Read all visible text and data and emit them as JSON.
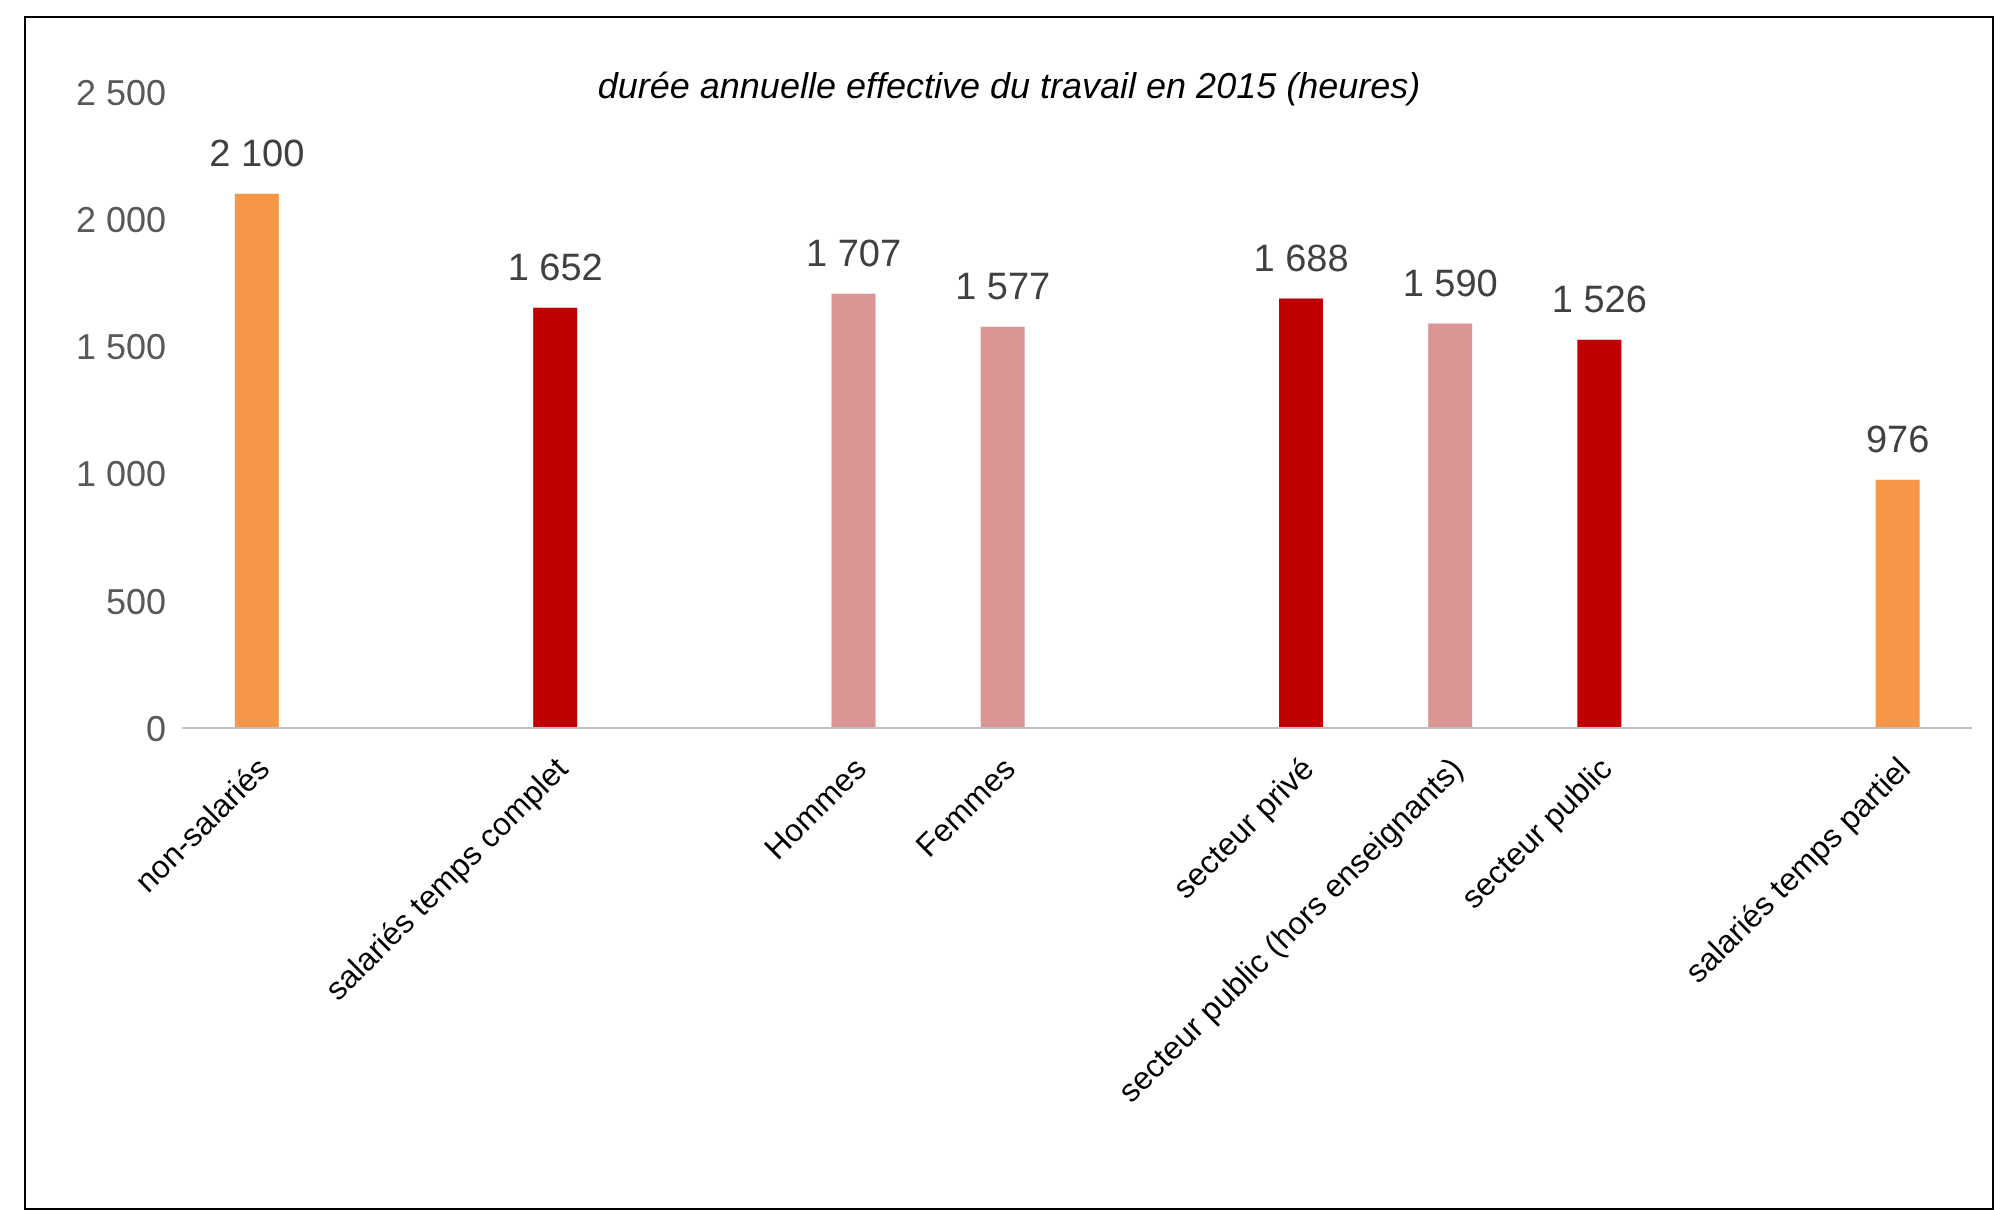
{
  "chart_data": {
    "type": "bar",
    "title": "durée annuelle effective du travail en 2015 (heures)",
    "categories": [
      "non-salariés",
      null,
      "salariés temps complet",
      null,
      "Hommes",
      "Femmes",
      null,
      "secteur privé",
      "secteur public (hors enseignants)",
      "secteur public",
      null,
      "salariés temps partiel"
    ],
    "values": [
      2100,
      null,
      1652,
      null,
      1707,
      1577,
      null,
      1688,
      1590,
      1526,
      null,
      976
    ],
    "colors": [
      "#f79646",
      null,
      "#c00000",
      null,
      "#d99694",
      "#d99694",
      null,
      "#c00000",
      "#d99694",
      "#c00000",
      null,
      "#f79646"
    ],
    "value_labels": [
      "2 100",
      null,
      "1 652",
      null,
      "1 707",
      "1 577",
      null,
      "1 688",
      "1 590",
      "1 526",
      null,
      "976"
    ],
    "ylim": [
      0,
      2500
    ],
    "yticks": [
      0,
      500,
      {
        "value": 1000,
        "label": "1 000"
      },
      {
        "value": 1500,
        "label": "1 500"
      },
      {
        "value": 2000,
        "label": "2 000"
      },
      {
        "value": 2500,
        "label": "2 500"
      }
    ],
    "grid": false,
    "legend": false
  }
}
